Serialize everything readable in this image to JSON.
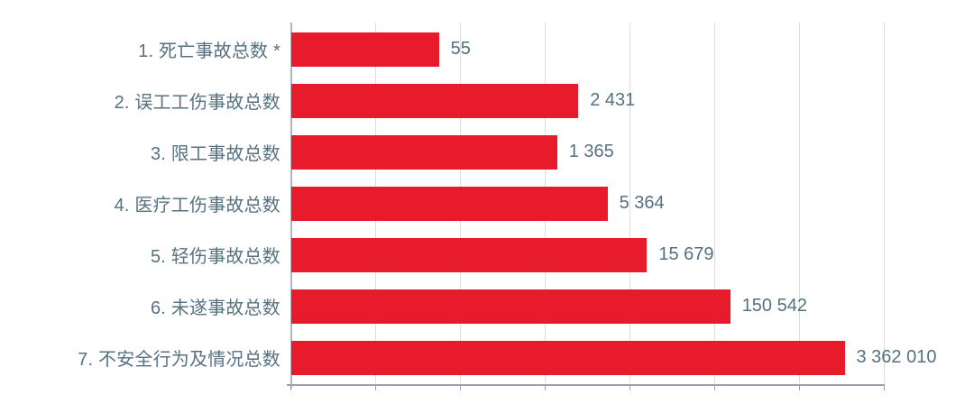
{
  "chart_data": {
    "type": "bar",
    "orientation": "horizontal",
    "title": "",
    "xlabel": "",
    "ylabel": "",
    "categories": [
      "1. 死亡事故总数 *",
      "2. 误工工伤事故总数",
      "3. 限工事故总数",
      "4. 医疗工伤事故总数",
      "5. 轻伤事故总数",
      "6. 未遂事故总数",
      "7. 不安全行为及情况总数"
    ],
    "values": [
      55,
      2431,
      1365,
      5364,
      15679,
      150542,
      3362010
    ],
    "value_labels": [
      "55",
      "2 431",
      "1 365",
      "5 364",
      "15 679",
      "150 542",
      "3 362 010"
    ],
    "x_scale": "log10",
    "x_range": [
      1,
      10000000
    ],
    "grid": "vertical-decade-gridlines",
    "legend": "none",
    "colors": {
      "bar": "#e81b2c",
      "text": "#567180",
      "gridline": "#dadedf",
      "y_axis": "#aeb8bf",
      "x_axis": "#9aa3ab"
    }
  }
}
